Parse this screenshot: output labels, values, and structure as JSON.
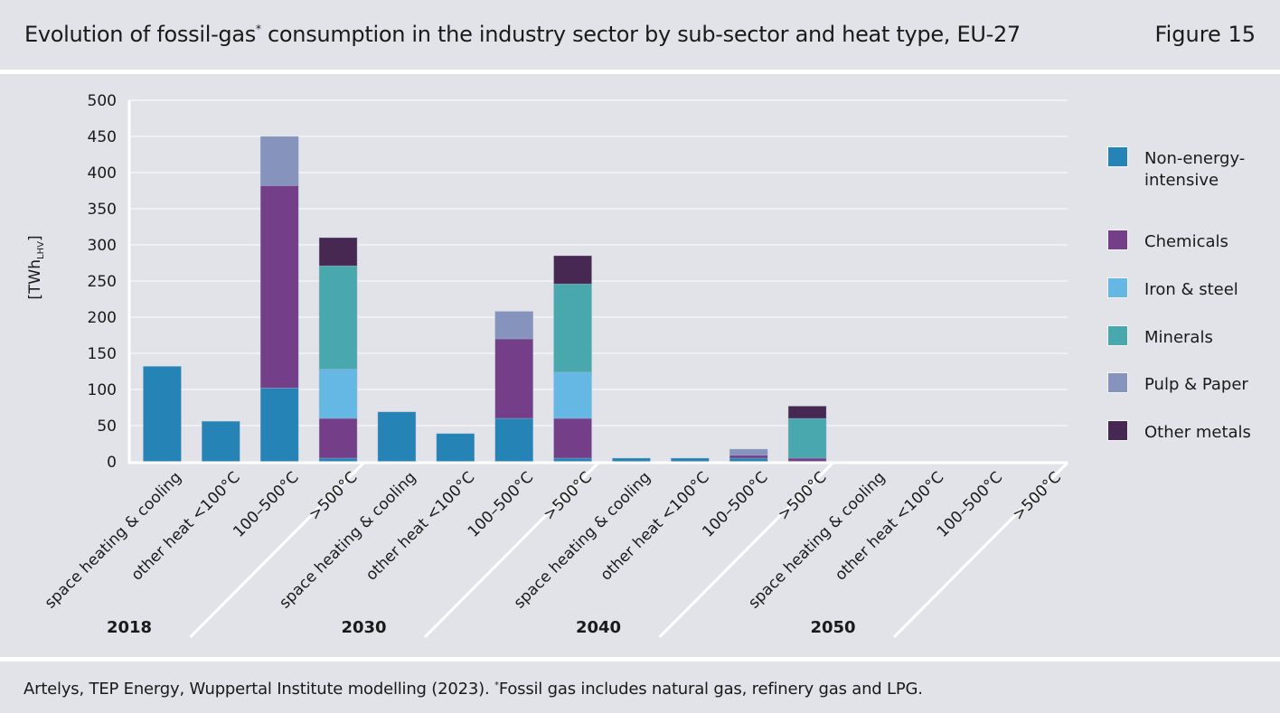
{
  "header": {
    "title": "Evolution of fossil-gas",
    "title_sup": "*",
    "title_rest": " consumption in the industry sector by sub-sector and heat type, EU-27",
    "figure_label": "Figure 15"
  },
  "footer": {
    "source": "Artelys, TEP Energy, Wuppertal Institute modelling (2023). ",
    "note_sup": "*",
    "note": "Fossil gas includes natural gas, refinery gas and LPG."
  },
  "chart_data": {
    "type": "bar",
    "stacked": true,
    "title": "Evolution of fossil-gas* consumption in the industry sector by sub-sector and heat type, EU-27",
    "ylabel": "[TWh",
    "ylabel_sub": "LHV",
    "ylabel_close": "]",
    "ylim": [
      0,
      500
    ],
    "yticks": [
      0,
      50,
      100,
      150,
      200,
      250,
      300,
      350,
      400,
      450,
      500
    ],
    "grid": true,
    "legend_position": "right",
    "groups": [
      "2018",
      "2030",
      "2040",
      "2050"
    ],
    "categories": [
      "space heating & cooling",
      "other heat <100°C",
      "100–500°C",
      ">500°C"
    ],
    "series": [
      {
        "name": "Non-energy-intensive",
        "name_lines": [
          "Non-energy-",
          "intensive"
        ],
        "color": "#2583b5",
        "values": [
          [
            132,
            56,
            102,
            5
          ],
          [
            69,
            39,
            60,
            5
          ],
          [
            5,
            5,
            5,
            0.5
          ],
          [
            0,
            0,
            0,
            0
          ]
        ]
      },
      {
        "name": "Chemicals",
        "name_lines": [
          "Chemicals"
        ],
        "color": "#743f88",
        "values": [
          [
            0,
            0,
            280,
            55
          ],
          [
            0,
            0,
            110,
            55
          ],
          [
            0,
            0,
            4,
            4.5
          ],
          [
            0,
            0,
            0,
            0
          ]
        ]
      },
      {
        "name": "Iron & steel",
        "name_lines": [
          "Iron & steel"
        ],
        "color": "#65b8e4",
        "values": [
          [
            0,
            0,
            0,
            68
          ],
          [
            0,
            0,
            0,
            64
          ],
          [
            0,
            0,
            0,
            0
          ],
          [
            0,
            0,
            0,
            0
          ]
        ]
      },
      {
        "name": "Minerals",
        "name_lines": [
          "Minerals"
        ],
        "color": "#49a8ae",
        "values": [
          [
            0,
            0,
            0,
            143
          ],
          [
            0,
            0,
            0,
            122
          ],
          [
            0,
            0,
            0,
            55
          ],
          [
            0,
            0,
            0,
            0
          ]
        ]
      },
      {
        "name": "Pulp & Paper",
        "name_lines": [
          "Pulp & Paper"
        ],
        "color": "#8593bd",
        "values": [
          [
            0,
            0,
            68,
            0
          ],
          [
            0,
            0,
            38,
            0
          ],
          [
            0,
            0,
            8.5,
            0
          ],
          [
            0,
            0,
            0,
            0
          ]
        ]
      },
      {
        "name": "Other metals",
        "name_lines": [
          "Other metals"
        ],
        "color": "#462852",
        "values": [
          [
            0,
            0,
            0,
            39
          ],
          [
            0,
            0,
            0,
            39
          ],
          [
            0,
            0,
            0,
            17
          ],
          [
            0,
            0,
            0,
            0
          ]
        ]
      }
    ]
  }
}
